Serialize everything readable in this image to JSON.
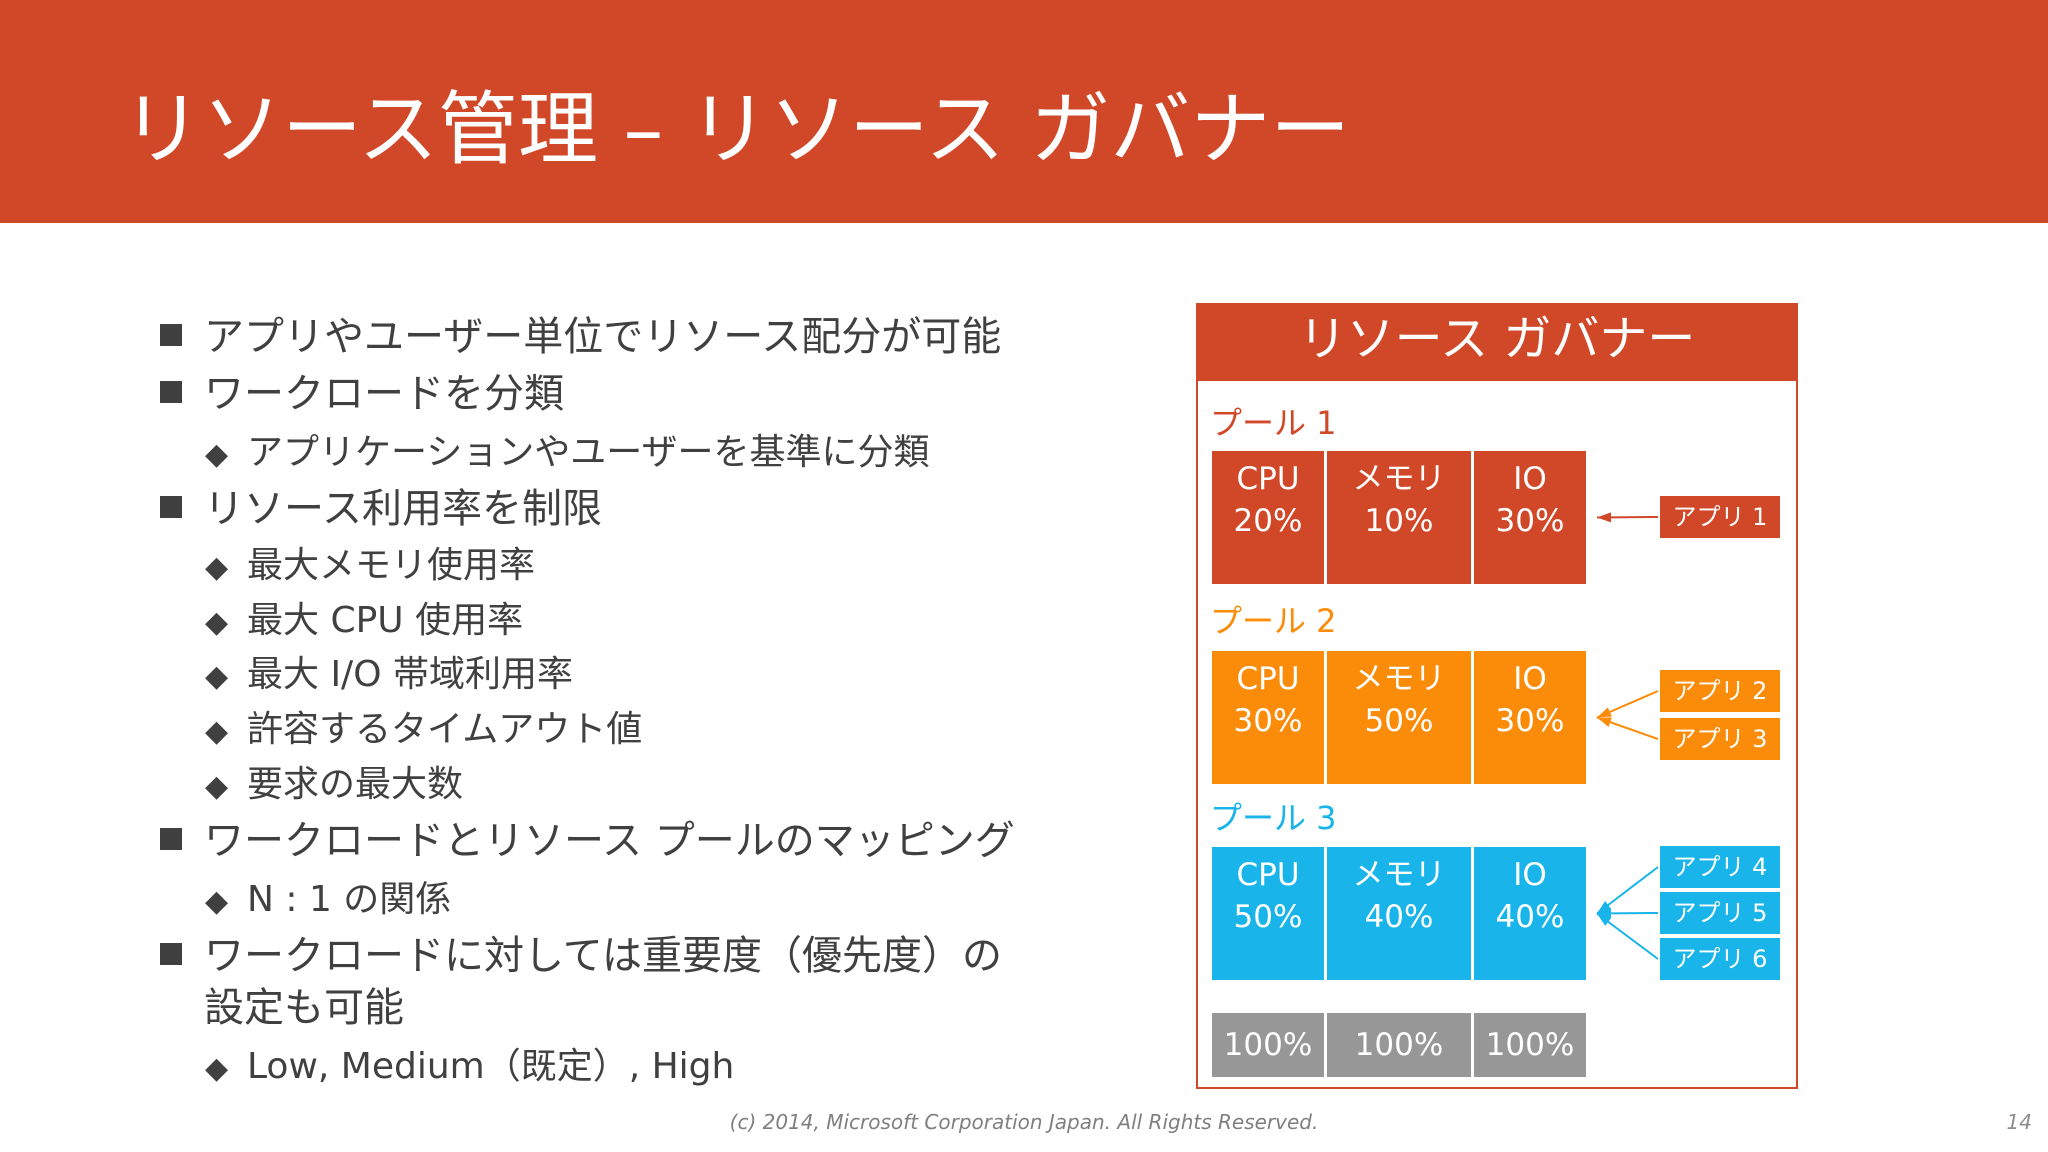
{
  "slide": {
    "title": "リソース管理 – リソース ガバナー",
    "footer": "(c) 2014, Microsoft Corporation Japan.  All Rights Reserved.",
    "page_number": "14"
  },
  "bullets": {
    "b1": "アプリやユーザー単位でリソース配分が可能",
    "b2": "ワークロードを分類",
    "b2_1": "アプリケーションやユーザーを基準に分類",
    "b3": "リソース利用率を制限",
    "b3_1": "最大メモリ使用率",
    "b3_2": "最大 CPU 使用率",
    "b3_3": "最大 I/O 帯域利用率",
    "b3_4": "許容するタイムアウト値",
    "b3_5": "要求の最大数",
    "b4": "ワークロードとリソース プールのマッピング",
    "b4_1": "N : 1 の関係",
    "b5_line1": "ワークロードに対しては重要度（優先度）の",
    "b5_line2": "設定も可能",
    "b5_1": "Low, Medium（既定）, High"
  },
  "diagram": {
    "title": "リソース ガバナー",
    "pools": [
      {
        "label": "プール 1",
        "color": "#D14828",
        "cells": [
          {
            "name": "CPU",
            "value": "20%"
          },
          {
            "name": "メモリ",
            "value": "10%"
          },
          {
            "name": "IO",
            "value": "30%"
          }
        ],
        "apps": [
          "アプリ 1"
        ]
      },
      {
        "label": "プール 2",
        "color": "#FA8C09",
        "cells": [
          {
            "name": "CPU",
            "value": "30%"
          },
          {
            "name": "メモリ",
            "value": "50%"
          },
          {
            "name": "IO",
            "value": "30%"
          }
        ],
        "apps": [
          "アプリ 2",
          "アプリ 3"
        ]
      },
      {
        "label": "プール 3",
        "color": "#18B4EA",
        "cells": [
          {
            "name": "CPU",
            "value": "50%"
          },
          {
            "name": "メモリ",
            "value": "40%"
          },
          {
            "name": "IO",
            "value": "40%"
          }
        ],
        "apps": [
          "アプリ 4",
          "アプリ 5",
          "アプリ 6"
        ]
      }
    ],
    "totals": [
      "100%",
      "100%",
      "100%"
    ],
    "total_color": "#979797"
  }
}
